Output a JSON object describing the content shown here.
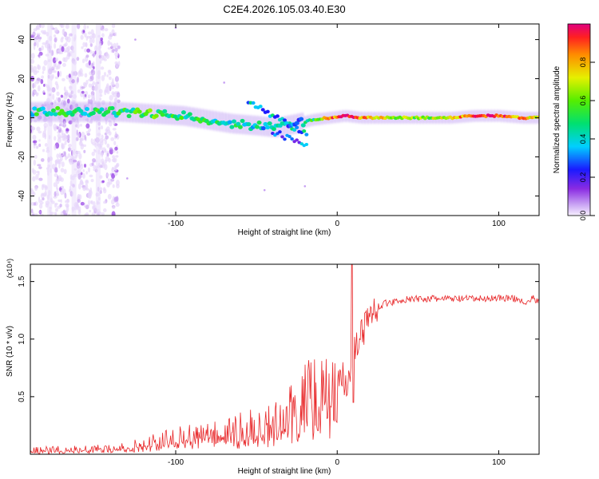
{
  "title": "C2E4.2026.105.03.40.E30",
  "colorbar": {
    "label": "Normalized spectral amplitude",
    "ticks": [
      "0.0",
      "0.2",
      "0.4",
      "0.6",
      "0.8"
    ],
    "tick_values": [
      0.0,
      0.2,
      0.4,
      0.6,
      0.8
    ],
    "range": [
      0,
      1
    ]
  },
  "chart_data": [
    {
      "type": "heatmap",
      "title": "C2E4.2026.105.03.40.E30",
      "xlabel": "Height of straight line (km)",
      "ylabel": "Frequency (Hz)",
      "xlim": [
        -190,
        125
      ],
      "ylim": [
        -50,
        48
      ],
      "xticks": [
        -100,
        0,
        100
      ],
      "xtick_labels": [
        "-100",
        "0",
        "100"
      ],
      "yticks": [
        -40,
        -20,
        0,
        20,
        40
      ],
      "ytick_labels": [
        "-40",
        "-20",
        "0",
        "20",
        "40"
      ],
      "colorbar_label": "Normalized spectral amplitude",
      "signal_ridge": [
        {
          "x": -185,
          "f": 3,
          "amp": 0.45
        },
        {
          "x": -170,
          "f": 3,
          "amp": 0.5
        },
        {
          "x": -155,
          "f": 3,
          "amp": 0.45
        },
        {
          "x": -135,
          "f": 3,
          "amp": 0.5
        },
        {
          "x": -115,
          "f": 2,
          "amp": 0.55
        },
        {
          "x": -95,
          "f": 1,
          "amp": 0.5
        },
        {
          "x": -80,
          "f": -1,
          "amp": 0.45
        },
        {
          "x": -65,
          "f": -3,
          "amp": 0.45
        },
        {
          "x": -50,
          "f": -4,
          "amp": 0.4
        },
        {
          "x": -38,
          "f": -5,
          "amp": 0.4
        },
        {
          "x": -25,
          "f": -3,
          "amp": 0.3
        },
        {
          "x": -15,
          "f": -1,
          "amp": 0.5
        },
        {
          "x": -5,
          "f": 0,
          "amp": 0.8
        },
        {
          "x": 5,
          "f": 1,
          "amp": 0.95
        },
        {
          "x": 15,
          "f": 0,
          "amp": 0.85
        },
        {
          "x": 30,
          "f": 0,
          "amp": 0.7
        },
        {
          "x": 50,
          "f": 0,
          "amp": 0.6
        },
        {
          "x": 70,
          "f": 0,
          "amp": 0.7
        },
        {
          "x": 85,
          "f": 1,
          "amp": 0.98
        },
        {
          "x": 100,
          "f": 1,
          "amp": 0.9
        },
        {
          "x": 115,
          "f": 0,
          "amp": 0.8
        },
        {
          "x": 125,
          "f": 0,
          "amp": 0.75
        }
      ]
    },
    {
      "type": "line",
      "xlabel": "Height of straight line (km)",
      "ylabel": "SNR (10 * v/v)",
      "y_multiplier": "(x10⁴)",
      "xlim": [
        -190,
        125
      ],
      "ylim": [
        0,
        1.65
      ],
      "xticks": [
        -100,
        0,
        100
      ],
      "xtick_labels": [
        "-100",
        "0",
        "100"
      ],
      "yticks": [
        0.5,
        1.0,
        1.5
      ],
      "ytick_labels": [
        "0.5",
        "1.0",
        "1.5"
      ],
      "color": "#e8282a",
      "series": [
        {
          "name": "SNR",
          "x": [
            -190,
            -170,
            -150,
            -130,
            -120,
            -110,
            -100,
            -90,
            -80,
            -70,
            -60,
            -50,
            -45,
            -40,
            -35,
            -30,
            -25,
            -20,
            -15,
            -10,
            -5,
            0,
            3,
            6,
            8,
            10,
            12,
            15,
            20,
            25,
            30,
            40,
            50,
            60,
            70,
            80,
            90,
            100,
            110,
            115,
            118,
            120,
            125
          ],
          "values": [
            0.03,
            0.04,
            0.05,
            0.06,
            0.09,
            0.12,
            0.15,
            0.17,
            0.19,
            0.21,
            0.23,
            0.25,
            0.27,
            0.3,
            0.32,
            0.36,
            0.42,
            0.5,
            0.55,
            0.6,
            0.64,
            0.66,
            0.7,
            0.6,
            0.75,
            0.9,
            0.95,
            1.05,
            1.2,
            1.28,
            1.31,
            1.34,
            1.35,
            1.35,
            1.35,
            1.35,
            1.35,
            1.36,
            1.35,
            1.34,
            1.3,
            1.36,
            1.33
          ]
        }
      ]
    }
  ]
}
